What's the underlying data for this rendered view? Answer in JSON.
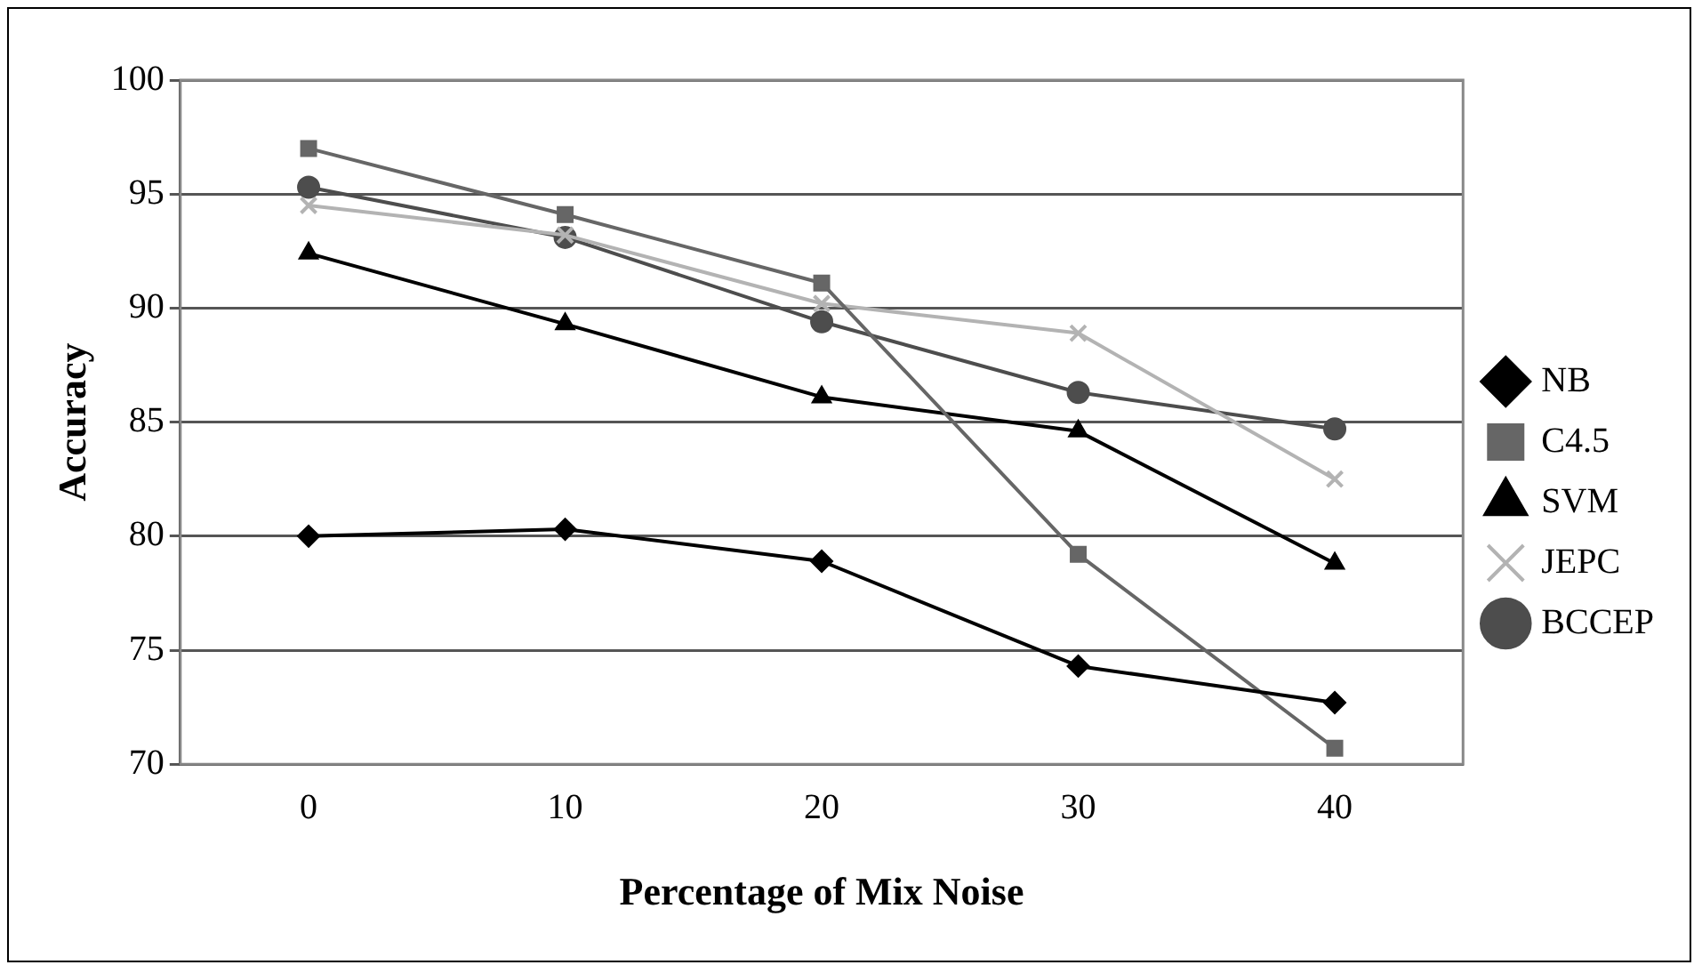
{
  "chart_data": {
    "type": "line",
    "xlabel": "Percentage of Mix Noise",
    "ylabel": "Accuracy",
    "categories": [
      "0",
      "10",
      "20",
      "30",
      "40"
    ],
    "ylim": [
      70,
      100
    ],
    "yticks": [
      70,
      75,
      80,
      85,
      90,
      95,
      100
    ],
    "grid": "y",
    "legend": "right",
    "series": [
      {
        "name": "NB",
        "color": "#000000",
        "marker": "diamond",
        "values": [
          80.0,
          80.3,
          78.9,
          74.3,
          72.7
        ]
      },
      {
        "name": "C4.5",
        "color": "#666666",
        "marker": "square",
        "values": [
          97.0,
          94.1,
          91.1,
          79.2,
          70.7
        ]
      },
      {
        "name": "SVM",
        "color": "#000000",
        "marker": "triangle",
        "values": [
          92.4,
          89.3,
          86.1,
          84.6,
          78.8
        ]
      },
      {
        "name": "JEPC",
        "color": "#b3b3b3",
        "marker": "cross",
        "values": [
          94.5,
          93.2,
          90.2,
          88.9,
          82.5
        ]
      },
      {
        "name": "BCCEP",
        "color": "#4d4d4d",
        "marker": "circle",
        "values": [
          95.3,
          93.1,
          89.4,
          86.3,
          84.7
        ]
      }
    ]
  }
}
